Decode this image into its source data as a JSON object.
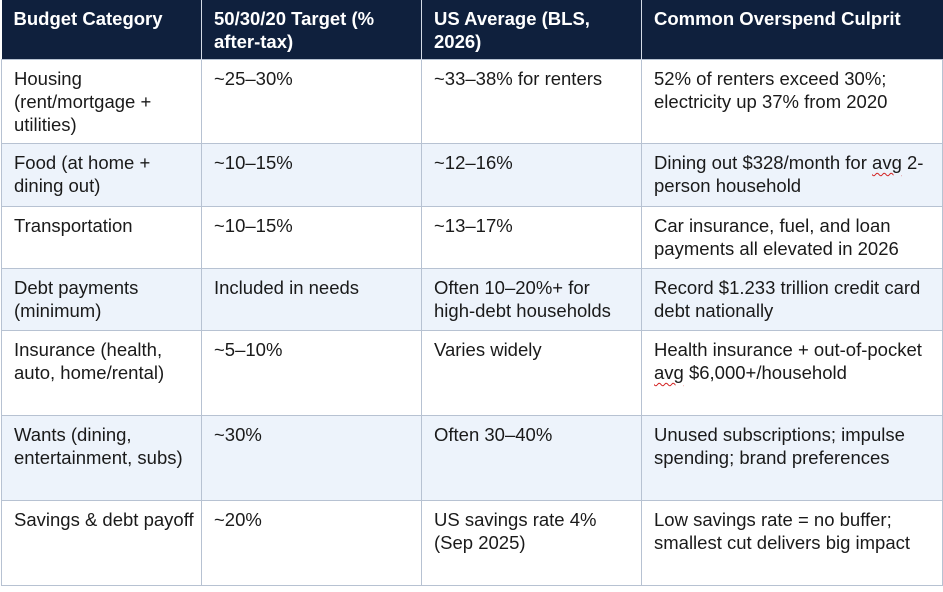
{
  "table": {
    "headers": [
      "Budget Category",
      "50/30/20 Target (% after-tax)",
      "US Average (BLS, 2026)",
      "Common Overspend Culprit"
    ],
    "rows": [
      {
        "category": "Housing (rent/mortgage + utilities)",
        "target": "~25–30%",
        "us_average": "~33–38% for renters",
        "culprit": "52% of renters exceed 30%; electricity up 37% from 2020"
      },
      {
        "category": "Food (at home + dining out)",
        "target": "~10–15%",
        "us_average": "~12–16%",
        "culprit_pre": "Dining out $328/month for ",
        "culprit_flagged": "avg",
        "culprit_post": " 2-person household"
      },
      {
        "category": "Transportation",
        "target": "~10–15%",
        "us_average": "~13–17%",
        "culprit": "Car insurance, fuel, and loan payments all elevated in 2026"
      },
      {
        "category": "Debt payments (minimum)",
        "target": "Included in needs",
        "us_average": "Often 10–20%+ for high-debt households",
        "culprit": "Record $1.233 trillion credit card debt nationally"
      },
      {
        "category": "Insurance (health, auto, home/rental)",
        "target": "~5–10%",
        "us_average": "Varies widely",
        "culprit_pre": "Health insurance + out-of-pocket ",
        "culprit_flagged": "avg",
        "culprit_post": " $6,000+/household"
      },
      {
        "category": "Wants (dining, entertainment, subs)",
        "target": "~30%",
        "us_average": "Often 30–40%",
        "culprit": "Unused subscriptions; impulse spending; brand preferences"
      },
      {
        "category": "Savings & debt payoff",
        "target": "~20%",
        "us_average": "US savings rate 4% (Sep 2025)",
        "culprit": "Low savings rate = no buffer; smallest cut delivers big impact"
      }
    ]
  },
  "colors": {
    "header_bg": "#0f203d",
    "header_text": "#ffffff",
    "row_alt_bg": "#edf3fb",
    "border": "#b7c2d2",
    "spellcheck_underline": "#d21f1f"
  }
}
